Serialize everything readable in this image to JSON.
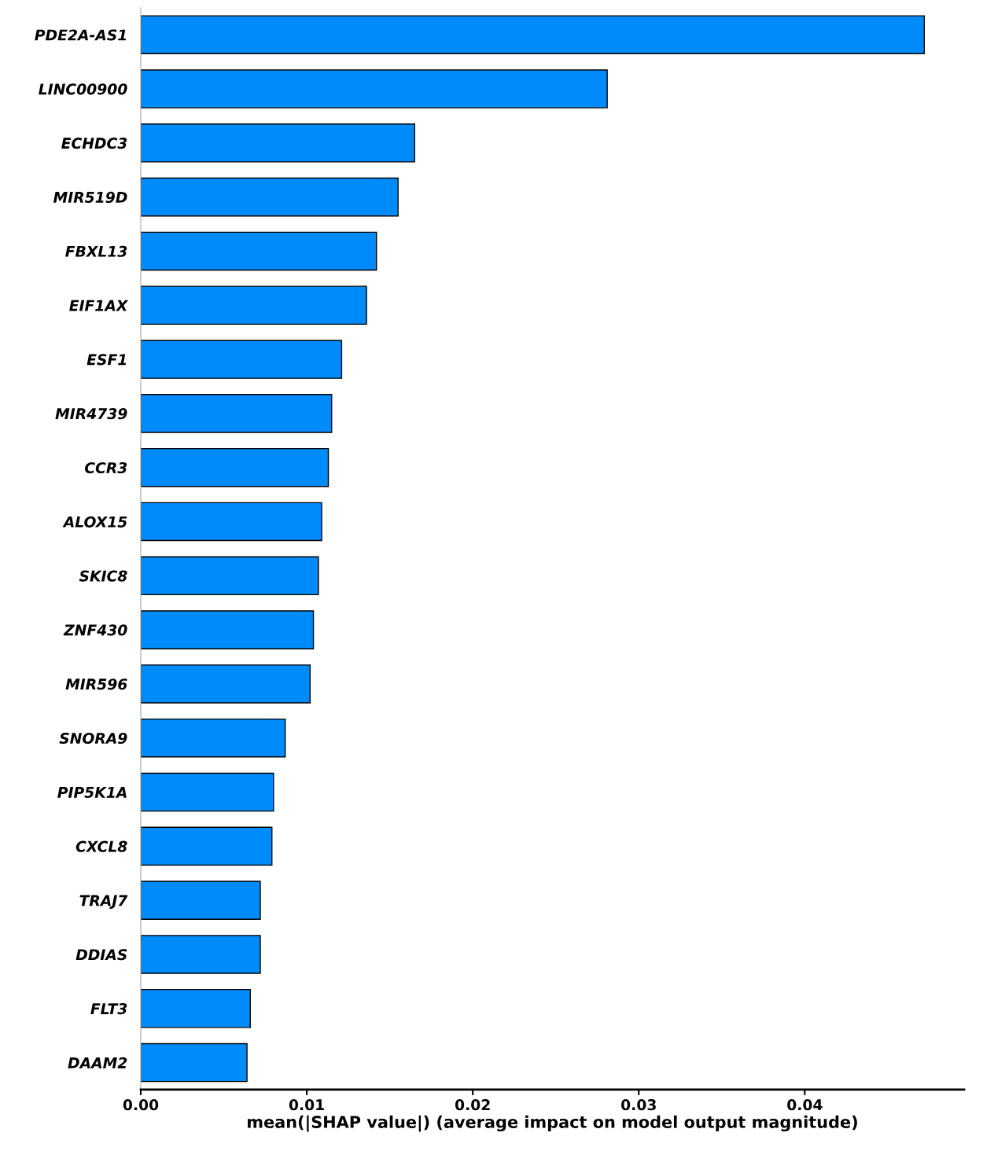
{
  "chart_data": {
    "type": "bar",
    "orientation": "horizontal",
    "xlabel": "mean(|SHAP value|) (average impact on model output magnitude)",
    "categories": [
      "PDE2A-AS1",
      "LINC00900",
      "ECHDC3",
      "MIR519D",
      "FBXL13",
      "EIF1AX",
      "ESF1",
      "MIR4739",
      "CCR3",
      "ALOX15",
      "SKIC8",
      "ZNF430",
      "MIR596",
      "SNORA9",
      "PIP5K1A",
      "CXCL8",
      "TRAJ7",
      "DDIAS",
      "FLT3",
      "DAAM2"
    ],
    "values": [
      0.0472,
      0.0281,
      0.0165,
      0.0155,
      0.0142,
      0.0136,
      0.0121,
      0.0115,
      0.0113,
      0.0109,
      0.0107,
      0.0104,
      0.0102,
      0.0087,
      0.008,
      0.0079,
      0.0072,
      0.0072,
      0.0066,
      0.0064
    ],
    "color": "#008bfb",
    "xlim": [
      0,
      0.0496
    ],
    "xticks": [
      {
        "value": 0,
        "label": "0.00"
      },
      {
        "value": 0.01,
        "label": "0.01"
      },
      {
        "value": 0.02,
        "label": "0.02"
      },
      {
        "value": 0.03,
        "label": "0.03"
      },
      {
        "value": 0.04,
        "label": "0.04"
      }
    ],
    "grid": false
  }
}
